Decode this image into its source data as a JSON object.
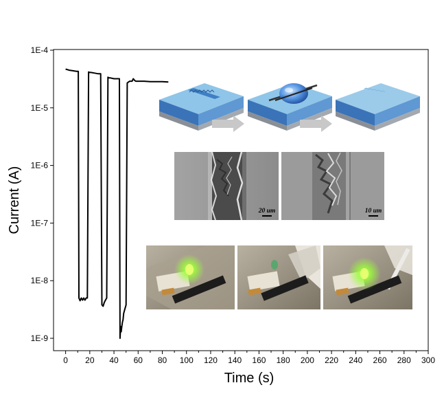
{
  "chart_data": {
    "type": "line",
    "title": "",
    "xlabel": "Time (s)",
    "ylabel": "Current (A)",
    "xlim": [
      -10,
      300
    ],
    "ylim": [
      1e-09,
      0.0001
    ],
    "yscale": "log",
    "grid": false,
    "x_ticks": [
      0,
      20,
      40,
      60,
      80,
      100,
      120,
      140,
      160,
      180,
      200,
      220,
      240,
      260,
      280,
      300
    ],
    "x_tick_labels": [
      "0",
      "20",
      "40",
      "60",
      "80",
      "100",
      "120",
      "140",
      "160",
      "180",
      "200",
      "220",
      "240",
      "260",
      "280",
      "300"
    ],
    "y_ticks": [
      0.0001,
      1e-05,
      1e-06,
      1e-07,
      1e-08,
      1e-09
    ],
    "y_tick_labels": [
      "1E-4",
      "1E-5",
      "1E-6",
      "1E-7",
      "1E-8",
      "1E-9"
    ],
    "series": [
      {
        "color": "#000000",
        "x": [
          0,
          3,
          6,
          9,
          10.5,
          11,
          12,
          13,
          14,
          15,
          16,
          17,
          18,
          19,
          20,
          21,
          24,
          27,
          29,
          30,
          31,
          32,
          33,
          34,
          35,
          36,
          37,
          40,
          43,
          44.5,
          45,
          45.5,
          46,
          46.5,
          47,
          47.5,
          48,
          49,
          50,
          51,
          52,
          53,
          55,
          56,
          57,
          58,
          60,
          65,
          70,
          75,
          80,
          85
        ],
        "y": [
          4.7e-05,
          4.5e-05,
          4.4e-05,
          4.3e-05,
          4.3e-05,
          5e-09,
          4.5e-09,
          5e-09,
          4.6e-09,
          5e-09,
          4.6e-09,
          5e-09,
          5e-09,
          4.2e-05,
          4.1e-05,
          4.1e-05,
          4e-05,
          3.9e-05,
          3.9e-05,
          3.8e-09,
          3.6e-09,
          4.2e-09,
          4.6e-09,
          5e-09,
          3.4e-05,
          3.3e-05,
          3.3e-05,
          3.2e-05,
          3.2e-05,
          3.2e-05,
          1e-09,
          1.6e-09,
          1.3e-09,
          1.6e-09,
          1.9e-09,
          2.1e-09,
          2.7e-09,
          3.2e-09,
          3.8e-09,
          2.7e-05,
          2.8e-05,
          2.9e-05,
          2.9e-05,
          3.2e-05,
          3e-05,
          2.9e-05,
          2.9e-05,
          2.9e-05,
          2.85e-05,
          2.85e-05,
          2.85e-05,
          2.8e-05
        ]
      }
    ],
    "annotations": {
      "scale_bar_1": "20 um",
      "scale_bar_2": "10 um"
    },
    "colors": {
      "axis": "#000000",
      "trench_top": "#8fc5e8",
      "trench_side": "#3a73b8",
      "substrate": "#8a8f96",
      "arrow": "#c8c8c8",
      "sem_gray": "#9a9a9a",
      "led_green": "#9cff3a"
    }
  }
}
